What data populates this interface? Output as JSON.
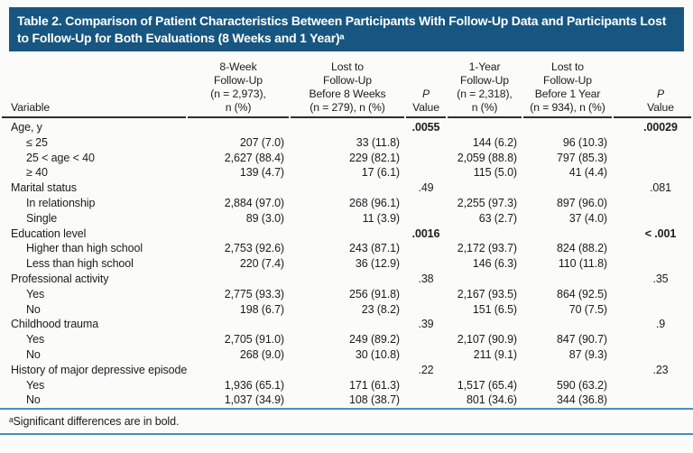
{
  "table": {
    "title": "Table 2. Comparison of Patient Characteristics Between Participants With Follow-Up Data and Participants Lost to Follow-Up for Both Evaluations (8 Weeks and 1 Year)ᵃ",
    "header": {
      "variable": "Variable",
      "col_8week": "8-Week\nFollow-Up\n(n = 2,973),\nn (%)",
      "col_lost_8week": "Lost to\nFollow-Up\nBefore 8 Weeks\n(n = 279), n (%)",
      "p_label": "P",
      "value_label": "Value",
      "col_1year": "1-Year\nFollow-Up\n(n = 2,318),\nn (%)",
      "col_lost_1year": "Lost to\nFollow-Up\nBefore 1 Year\n(n = 934), n (%)"
    },
    "rows": [
      {
        "label": "Age, y",
        "p8w": ".0055",
        "bold8": true,
        "p1y": ".00029",
        "bold1": true
      },
      {
        "label": "≤ 25",
        "indent": true,
        "v8w": "207 (7.0)",
        "l8w": "33 (11.8)",
        "v1y": "144 (6.2)",
        "l1y": "96 (10.3)"
      },
      {
        "label": "25 < age < 40",
        "indent": true,
        "v8w": "2,627 (88.4)",
        "l8w": "229 (82.1)",
        "v1y": "2,059 (88.8)",
        "l1y": "797 (85.3)"
      },
      {
        "label": "≥ 40",
        "indent": true,
        "v8w": "139 (4.7)",
        "l8w": "17 (6.1)",
        "v1y": "115 (5.0)",
        "l1y": "41 (4.4)"
      },
      {
        "label": "Marital status",
        "p8w": ".49",
        "p1y": ".081"
      },
      {
        "label": "In relationship",
        "indent": true,
        "v8w": "2,884 (97.0)",
        "l8w": "268 (96.1)",
        "v1y": "2,255 (97.3)",
        "l1y": "897 (96.0)"
      },
      {
        "label": "Single",
        "indent": true,
        "v8w": "89 (3.0)",
        "l8w": "11 (3.9)",
        "v1y": "63 (2.7)",
        "l1y": "37 (4.0)"
      },
      {
        "label": "Education level",
        "p8w": ".0016",
        "bold8": true,
        "p1y": "< .001",
        "bold1": true
      },
      {
        "label": "Higher than high school",
        "indent": true,
        "v8w": "2,753 (92.6)",
        "l8w": "243 (87.1)",
        "v1y": "2,172 (93.7)",
        "l1y": "824 (88.2)"
      },
      {
        "label": "Less than high school",
        "indent": true,
        "v8w": "220 (7.4)",
        "l8w": "36 (12.9)",
        "v1y": "146 (6.3)",
        "l1y": "110 (11.8)"
      },
      {
        "label": "Professional activity",
        "p8w": ".38",
        "p1y": ".35"
      },
      {
        "label": "Yes",
        "indent": true,
        "v8w": "2,775 (93.3)",
        "l8w": "256 (91.8)",
        "v1y": "2,167 (93.5)",
        "l1y": "864 (92.5)"
      },
      {
        "label": "No",
        "indent": true,
        "v8w": "198 (6.7)",
        "l8w": "23 (8.2)",
        "v1y": "151 (6.5)",
        "l1y": "70 (7.5)"
      },
      {
        "label": "Childhood trauma",
        "p8w": ".39",
        "p1y": ".9"
      },
      {
        "label": "Yes",
        "indent": true,
        "v8w": "2,705 (91.0)",
        "l8w": "249 (89.2)",
        "v1y": "2,107 (90.9)",
        "l1y": "847 (90.7)"
      },
      {
        "label": "No",
        "indent": true,
        "v8w": "268 (9.0)",
        "l8w": "30 (10.8)",
        "v1y": "211 (9.1)",
        "l1y": "87 (9.3)"
      },
      {
        "label": "History of major depressive episode",
        "p8w": ".22",
        "p1y": ".23"
      },
      {
        "label": "Yes",
        "indent": true,
        "v8w": "1,936 (65.1)",
        "l8w": "171 (61.3)",
        "v1y": "1,517 (65.4)",
        "l1y": "590 (63.2)"
      },
      {
        "label": "No",
        "indent": true,
        "v8w": "1,037 (34.9)",
        "l8w": "108 (38.7)",
        "v1y": "801 (34.6)",
        "l1y": "344 (36.8)"
      }
    ],
    "footnote": "ᵃSignificant differences are in bold.",
    "colors": {
      "title_bar_background": "#175680",
      "title_text": "#ffffff",
      "header_rule": "#2e2e2e",
      "footnote_rule_blue": "#4e8cba",
      "body_text": "#1c1c1c"
    }
  }
}
